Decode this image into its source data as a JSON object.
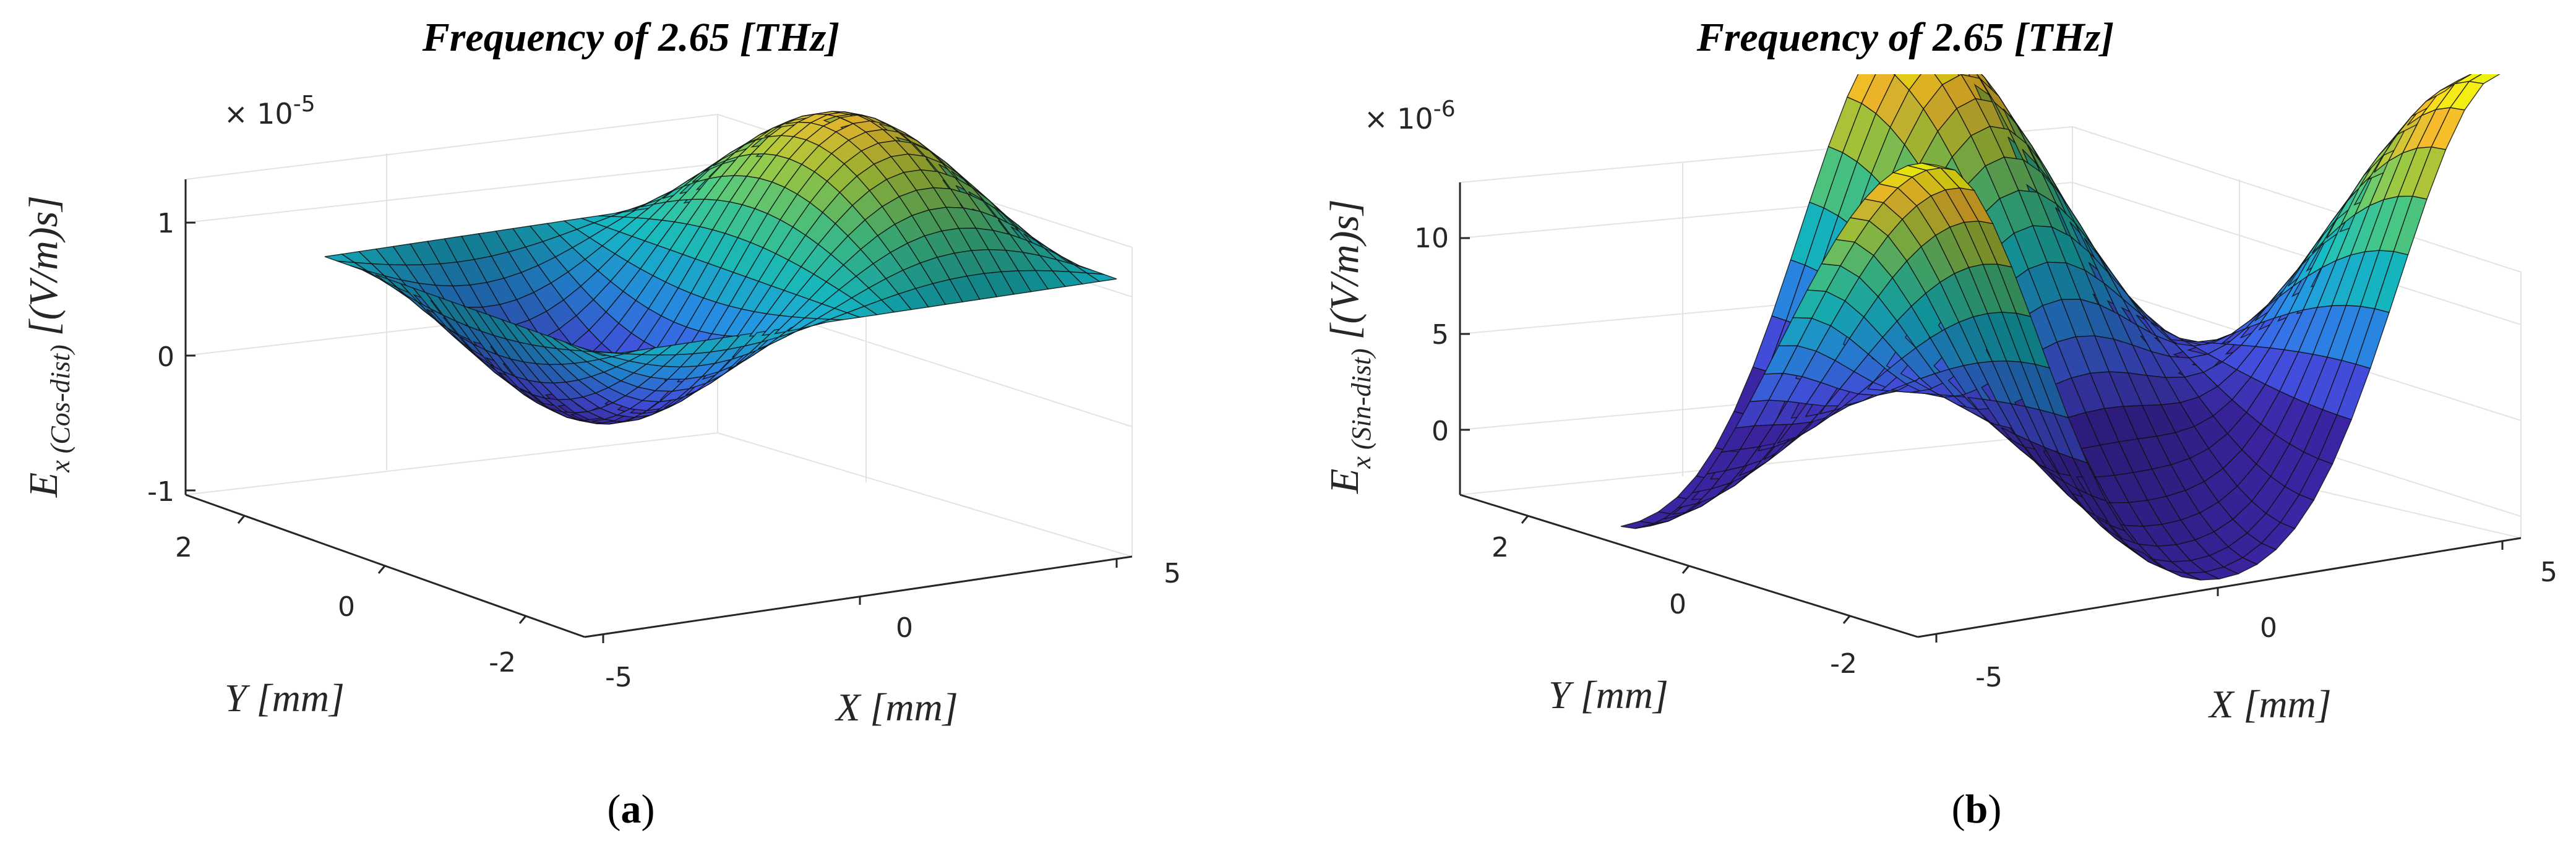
{
  "chart_data": [
    {
      "type": "surface",
      "panel_label": "a",
      "title": "Frequency of 2.65 [THz]",
      "xlabel": "X [mm]",
      "ylabel": "Y [mm]",
      "zlabel_main": "E",
      "zlabel_sub": "x (Cos-dist)",
      "zlabel_units": "[(V/m)s]",
      "exponent_base": "× 10",
      "exponent_power": "-5",
      "x_ticks": [
        "-5",
        "0",
        "5"
      ],
      "y_ticks": [
        "2",
        "0",
        "-2"
      ],
      "z_ticks": [
        "1",
        "0",
        "-1"
      ],
      "xlim": [
        -5,
        5
      ],
      "ylim": [
        -2.5,
        2.5
      ],
      "zlim": [
        -1,
        1.3
      ],
      "grid": true,
      "colormap": "parula",
      "function": "cos-dist",
      "amplitude": 1.0
    },
    {
      "type": "surface",
      "panel_label": "b",
      "title": "Frequency of 2.65 [THz]",
      "xlabel": "X [mm]",
      "ylabel": "Y [mm]",
      "zlabel_main": "E",
      "zlabel_sub": "x (Sin-dist)",
      "zlabel_units": "[(V/m)s]",
      "exponent_base": "× 10",
      "exponent_power": "-6",
      "x_ticks": [
        "-5",
        "0",
        "5"
      ],
      "y_ticks": [
        "2",
        "0",
        "-2"
      ],
      "z_ticks": [
        "10",
        "5",
        "0"
      ],
      "xlim": [
        -5,
        5
      ],
      "ylim": [
        -2.5,
        2.5
      ],
      "zlim": [
        -4,
        13
      ],
      "grid": true,
      "colormap": "parula",
      "function": "sin-dist",
      "amplitude": 12.0
    }
  ],
  "captions": [
    {
      "open": "(",
      "label": "a",
      "close": ")"
    },
    {
      "open": "(",
      "label": "b",
      "close": ")"
    }
  ]
}
